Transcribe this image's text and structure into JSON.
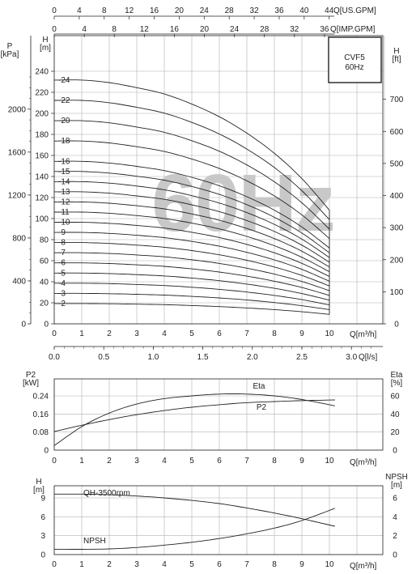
{
  "chart_data": [
    {
      "name": "head",
      "type": "line",
      "model": "CVF5",
      "frequency": "60Hz",
      "watermark": "60Hz",
      "x_label": "Q[m³/h]",
      "y_label_left": "H\n[m]",
      "y_label_right": "H\n[ft]",
      "y_label_pressure": "P\n[kPa]",
      "top_axis_1_label": "Q[US.GPM]",
      "top_axis_2_label": "Q[IMP.GPM]",
      "xlim": [
        0,
        12
      ],
      "ylim": [
        0,
        250
      ],
      "x_ticks": [
        0,
        1,
        2,
        3,
        4,
        5,
        6,
        7,
        8,
        9,
        10
      ],
      "y_ticks": [
        0,
        20,
        40,
        60,
        80,
        100,
        120,
        140,
        160,
        180,
        200,
        220,
        240
      ],
      "ft_ticks": [
        0,
        100,
        200,
        300,
        400,
        500,
        600,
        700
      ],
      "kpa_ticks": [
        0,
        400,
        800,
        1200,
        1600,
        2000
      ],
      "usgpm_ticks": [
        0,
        4,
        8,
        12,
        16,
        20,
        24,
        28,
        32,
        36,
        40,
        44
      ],
      "impgpm_ticks": [
        0,
        4,
        8,
        12,
        16,
        20,
        24,
        28,
        32,
        36
      ],
      "stages": [
        2,
        3,
        4,
        5,
        6,
        7,
        8,
        9,
        10,
        11,
        12,
        13,
        14,
        15,
        16,
        18,
        20,
        22,
        24
      ],
      "stage_labels": [
        "-2",
        "-3",
        "-4",
        "-5",
        "-6",
        "-7",
        "-8",
        "-9",
        "-10",
        "-11",
        "-12",
        "-13",
        "-14",
        "-15",
        "-16",
        "-18",
        "-20",
        "-22",
        "-24"
      ],
      "stage_head_m": [
        [
          0,
          19.3
        ],
        [
          1,
          19.3
        ],
        [
          2,
          19.1
        ],
        [
          3,
          18.7
        ],
        [
          4,
          18.2
        ],
        [
          5,
          17.4
        ],
        [
          6,
          16.4
        ],
        [
          7,
          15.1
        ],
        [
          8,
          13.5
        ],
        [
          9,
          11.5
        ],
        [
          10,
          9.0
        ]
      ]
    },
    {
      "name": "power",
      "type": "line",
      "x_label": "Q[m³/h]",
      "y_label_left": "P2\n[kW]",
      "y_label_right": "Eta\n[%]",
      "xlim": [
        0,
        12
      ],
      "ylim": [
        0,
        0.3
      ],
      "x_ticks": [
        0,
        1,
        2,
        3,
        4,
        5,
        6,
        7,
        8,
        9,
        10
      ],
      "y_ticks": [
        0,
        0.08,
        0.16,
        0.24
      ],
      "y_tick_labels": [
        "0",
        "0.08",
        "0.16",
        "0.24"
      ],
      "eta_ticks": [
        0,
        20,
        40,
        60
      ],
      "eta_ylim": [
        0,
        75
      ],
      "ls_ticks": [
        0.0,
        0.5,
        1.0,
        1.5,
        2.0,
        2.5,
        3.0
      ],
      "ls_tick_labels": [
        "0.0",
        "0.5",
        "1.0",
        "1.5",
        "2.0",
        "2.5",
        "3.0"
      ],
      "ls_label": "Q[l/s]",
      "series": [
        {
          "name": "Eta",
          "axis": "right",
          "x": [
            0,
            1,
            2,
            3,
            4,
            5,
            6,
            7,
            8,
            9,
            10.2
          ],
          "y": [
            5,
            26,
            41,
            51,
            57,
            60,
            62,
            62,
            60,
            56,
            49
          ]
        },
        {
          "name": "P2",
          "axis": "left",
          "x": [
            0,
            1,
            2,
            3,
            4,
            5,
            6,
            7,
            8,
            9,
            10.2
          ],
          "y": [
            0.082,
            0.11,
            0.135,
            0.157,
            0.175,
            0.19,
            0.201,
            0.21,
            0.215,
            0.219,
            0.222
          ]
        }
      ]
    },
    {
      "name": "npsh",
      "type": "line",
      "x_label": "Q[m³/h]",
      "y_label_left": "H\n[m]",
      "y_label_right": "NPSH\n[m]",
      "xlim": [
        0,
        12
      ],
      "ylim": [
        0,
        11
      ],
      "x_ticks": [
        0,
        1,
        2,
        3,
        4,
        5,
        6,
        7,
        8,
        9,
        10
      ],
      "y_ticks": [
        0,
        3,
        6,
        9
      ],
      "npsh_ticks": [
        0,
        2,
        4,
        6
      ],
      "npsh_ylim": [
        0,
        7.3
      ],
      "series": [
        {
          "name": "QH-3500rpm",
          "axis": "left",
          "x": [
            0,
            1,
            2,
            3,
            4,
            5,
            6,
            7,
            8,
            9,
            10.2
          ],
          "y": [
            9.6,
            9.6,
            9.5,
            9.3,
            9.0,
            8.6,
            8.1,
            7.4,
            6.6,
            5.7,
            4.5
          ]
        },
        {
          "name": "NPSH",
          "axis": "right",
          "x": [
            0,
            1,
            2,
            3,
            4,
            5,
            6,
            7,
            8,
            9,
            10.2
          ],
          "y": [
            0.55,
            0.56,
            0.6,
            0.75,
            1.0,
            1.3,
            1.7,
            2.2,
            2.8,
            3.6,
            4.9
          ]
        }
      ]
    }
  ]
}
